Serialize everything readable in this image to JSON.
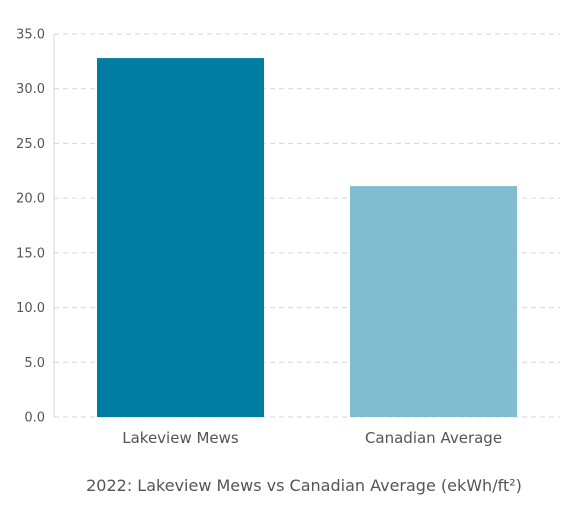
{
  "chart_data": {
    "type": "bar",
    "categories": [
      "Lakeview Mews",
      "Canadian Average"
    ],
    "values": [
      32.8,
      21.1
    ],
    "colors": [
      "#007da0",
      "#80bdd0"
    ],
    "ylim": [
      0,
      35
    ],
    "yticks": [
      "0.0",
      "5.0",
      "10.0",
      "15.0",
      "20.0",
      "25.0",
      "30.0",
      "35.0"
    ],
    "ytick_values": [
      0,
      5,
      10,
      15,
      20,
      25,
      30,
      35
    ],
    "grid": true,
    "grid_style": "dashed",
    "title": "",
    "xlabel": "",
    "ylabel": "",
    "caption": "2022: Lakeview Mews vs Canadian Average (ekWh/ft²)"
  }
}
